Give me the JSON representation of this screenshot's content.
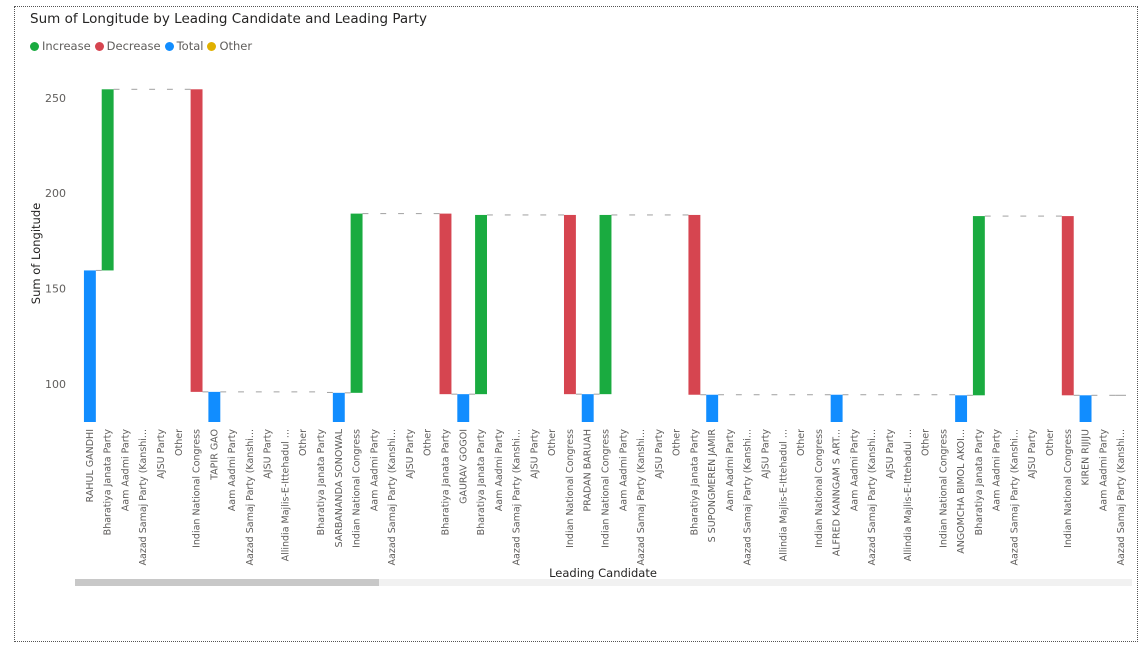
{
  "chart_data": {
    "type": "waterfall",
    "title": "Sum of Longitude by Leading Candidate and Leading Party",
    "xlabel": "Leading Candidate",
    "ylabel": "Sum of Longitude",
    "ylim": [
      80,
      262
    ],
    "yticks": [
      100,
      150,
      200,
      250
    ],
    "grid": false,
    "legend_position": "top-left",
    "legend": [
      {
        "name": "Increase",
        "color": "#1aab40"
      },
      {
        "name": "Decrease",
        "color": "#d64550"
      },
      {
        "name": "Total",
        "color": "#118dff"
      },
      {
        "name": "Other",
        "color": "#e0b000"
      }
    ],
    "categories": [
      "RAHUL GANDHI",
      "Bharatiya Janata Party",
      "Aam Aadmi Party",
      "Aazad Samaj Party (Kanshi...",
      "AJSU Party",
      "Other",
      "Indian National Congress",
      "TAPIR GAO",
      "Aam Aadmi Party",
      "Aazad Samaj Party (Kanshi...",
      "AJSU Party",
      "Allindia Majlis-E-Ittehadul ...",
      "Other",
      "Bharatiya Janata Party",
      "SARBANANDA SONOWAL",
      "Indian National Congress",
      "Aam Aadmi Party",
      "Aazad Samaj Party (Kanshi...",
      "AJSU Party",
      "Other",
      "Bharatiya Janata Party",
      "GAURAV GOGOI",
      "Bharatiya Janata Party",
      "Aam Aadmi Party",
      "Aazad Samaj Party (Kanshi...",
      "AJSU Party",
      "Other",
      "Indian National Congress",
      "PRADAN BARUAH",
      "Indian National Congress",
      "Aam Aadmi Party",
      "Aazad Samaj Party (Kanshi...",
      "AJSU Party",
      "Other",
      "Bharatiya Janata Party",
      "S SUPONGMEREN JAMIR",
      "Aam Aadmi Party",
      "Aazad Samaj Party (Kanshi...",
      "AJSU Party",
      "Allindia Majlis-E-Ittehadul ...",
      "Other",
      "Indian National Congress",
      "ALFRED KANNGAM S ART...",
      "Aam Aadmi Party",
      "Aazad Samaj Party (Kanshi...",
      "AJSU Party",
      "Allindia Majlis-E-Ittehadul ...",
      "Other",
      "Indian National Congress",
      "ANGOMCHA BIMOL AKOI...",
      "Bharatiya Janata Party",
      "Aam Aadmi Party",
      "Aazad Samaj Party (Kanshi...",
      "AJSU Party",
      "Other",
      "Indian National Congress",
      "KIREN RIJIJU",
      "Aam Aadmi Party",
      "Aazad Samaj Party (Kanshi..."
    ],
    "bars": [
      {
        "kind": "total",
        "from": 80,
        "to": 159.5
      },
      {
        "kind": "increase",
        "from": 159.5,
        "to": 254.5
      },
      {
        "kind": "none",
        "level": 254.5
      },
      {
        "kind": "none",
        "level": 254.5
      },
      {
        "kind": "none",
        "level": 254.5
      },
      {
        "kind": "none",
        "level": 254.5
      },
      {
        "kind": "decrease",
        "from": 254.5,
        "to": 95.8
      },
      {
        "kind": "total",
        "from": 80,
        "to": 95.8
      },
      {
        "kind": "none",
        "level": 95.8
      },
      {
        "kind": "none",
        "level": 95.8
      },
      {
        "kind": "none",
        "level": 95.8
      },
      {
        "kind": "none",
        "level": 95.8
      },
      {
        "kind": "none",
        "level": 95.8
      },
      {
        "kind": "none",
        "level": 95.5
      },
      {
        "kind": "total",
        "from": 80,
        "to": 95.3
      },
      {
        "kind": "increase",
        "from": 95.3,
        "to": 189.3
      },
      {
        "kind": "none",
        "level": 189.3
      },
      {
        "kind": "none",
        "level": 189.3
      },
      {
        "kind": "none",
        "level": 189.3
      },
      {
        "kind": "none",
        "level": 189.3
      },
      {
        "kind": "decrease",
        "from": 189.3,
        "to": 94.6
      },
      {
        "kind": "total",
        "from": 80,
        "to": 94.6
      },
      {
        "kind": "increase",
        "from": 94.6,
        "to": 188.6
      },
      {
        "kind": "none",
        "level": 188.6
      },
      {
        "kind": "none",
        "level": 188.6
      },
      {
        "kind": "none",
        "level": 188.6
      },
      {
        "kind": "none",
        "level": 188.6
      },
      {
        "kind": "decrease",
        "from": 188.6,
        "to": 94.6
      },
      {
        "kind": "total",
        "from": 80,
        "to": 94.6
      },
      {
        "kind": "increase",
        "from": 94.6,
        "to": 188.6
      },
      {
        "kind": "none",
        "level": 188.6
      },
      {
        "kind": "none",
        "level": 188.6
      },
      {
        "kind": "none",
        "level": 188.6
      },
      {
        "kind": "none",
        "level": 188.6
      },
      {
        "kind": "decrease",
        "from": 188.6,
        "to": 94.3
      },
      {
        "kind": "total",
        "from": 80,
        "to": 94.3
      },
      {
        "kind": "none",
        "level": 94.3
      },
      {
        "kind": "none",
        "level": 94.3
      },
      {
        "kind": "none",
        "level": 94.3
      },
      {
        "kind": "none",
        "level": 94.3
      },
      {
        "kind": "none",
        "level": 94.3
      },
      {
        "kind": "none",
        "level": 94.3
      },
      {
        "kind": "total",
        "from": 80,
        "to": 94.3
      },
      {
        "kind": "none",
        "level": 94.3
      },
      {
        "kind": "none",
        "level": 94.3
      },
      {
        "kind": "none",
        "level": 94.3
      },
      {
        "kind": "none",
        "level": 94.3
      },
      {
        "kind": "none",
        "level": 94.3
      },
      {
        "kind": "none",
        "level": 94.3
      },
      {
        "kind": "total",
        "from": 80,
        "to": 94.0
      },
      {
        "kind": "increase",
        "from": 94.0,
        "to": 188.0
      },
      {
        "kind": "none",
        "level": 188.0
      },
      {
        "kind": "none",
        "level": 188.0
      },
      {
        "kind": "none",
        "level": 188.0
      },
      {
        "kind": "none",
        "level": 188.0
      },
      {
        "kind": "decrease",
        "from": 188.0,
        "to": 94.0
      },
      {
        "kind": "total",
        "from": 80,
        "to": 94.0
      },
      {
        "kind": "none",
        "level": 94.0
      },
      {
        "kind": "none",
        "level": 94.0
      }
    ]
  }
}
